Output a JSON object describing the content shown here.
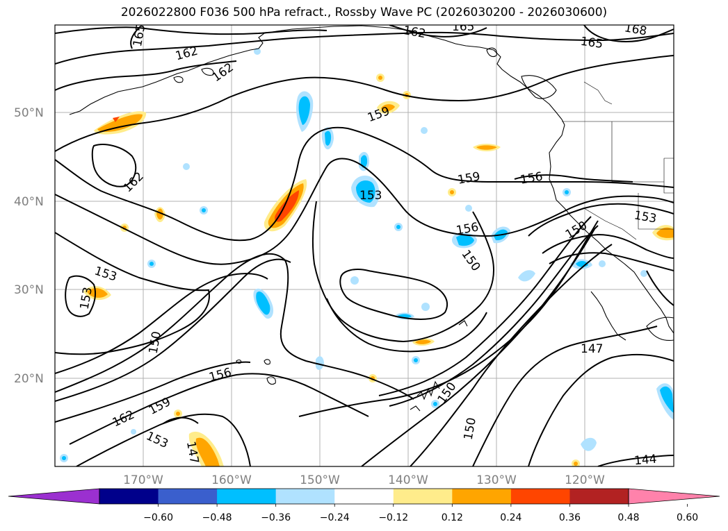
{
  "title": "2026022800 F036 500 hPa refract., Rossby Wave PC (2026030200 - 2026030600)",
  "lat_labels": [
    "50°N",
    "40°N",
    "30°N",
    "20°N"
  ],
  "lon_labels": [
    "170°W",
    "160°W",
    "150°W",
    "140°W",
    "130°W",
    "120°W"
  ],
  "colorbar": {
    "ticks": [
      "−0.60",
      "−0.48",
      "−0.36",
      "−0.24",
      "−0.12",
      "0.12",
      "0.24",
      "0.36",
      "0.48",
      "0.60"
    ],
    "colors": [
      "#9b30d0",
      "#00008b",
      "#3a5fcd",
      "#00bfff",
      "#b0e2ff",
      "#ffffff",
      "#ffec8b",
      "#ffa500",
      "#ff4500",
      "#b22222",
      "#ff82ab"
    ]
  },
  "contour_labels": [
    "165",
    "162",
    "162",
    "162",
    "165",
    "168",
    "165",
    "159",
    "162",
    "159",
    "156",
    "153",
    "153",
    "150",
    "156",
    "150",
    "153",
    "153",
    "150",
    "156",
    "162",
    "159",
    "153",
    "147",
    "150",
    "147",
    "150",
    "144"
  ],
  "icons": {
    "map": "map-projection-panel",
    "colorbar": "extended-colorbar"
  }
}
